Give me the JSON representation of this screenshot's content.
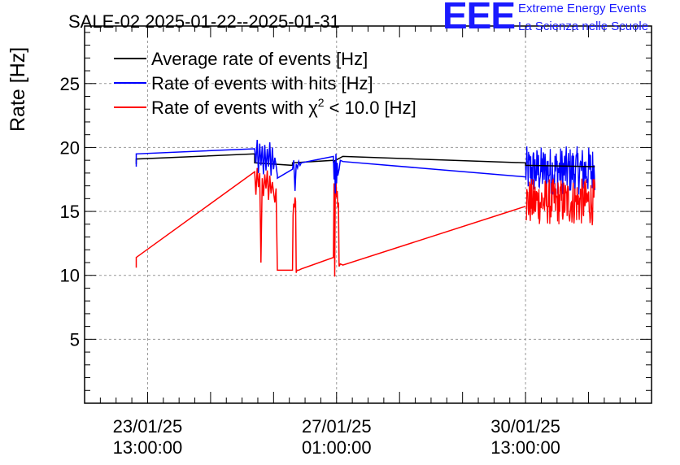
{
  "header": {
    "title": "SALE-02 2025-01-22--2025-01-31",
    "logo_text": "EEE",
    "logo_line1": "Extreme Energy Events",
    "logo_line2": "La Scienza nelle Scuole"
  },
  "chart_data": {
    "type": "line",
    "title": "SALE-02 2025-01-22--2025-01-31",
    "ylabel": "Rate [Hz]",
    "xlabel": "",
    "ylim": [
      0,
      29.5
    ],
    "xlim_days": [
      0,
      9.0
    ],
    "yticks": [
      5,
      10,
      15,
      20,
      25
    ],
    "xticks": [
      {
        "day": 1.0,
        "date": "23/01/25",
        "time": "13:00:00"
      },
      {
        "day": 4.0,
        "date": "27/01/25",
        "time": "01:00:00"
      },
      {
        "day": 7.0,
        "date": "30/01/25",
        "time": "13:00:00"
      }
    ],
    "grid": true,
    "legend_position": "top-left",
    "legend": [
      {
        "label": "Average rate of events [Hz]",
        "color": "#000000"
      },
      {
        "label": "Rate of events with hits [Hz]",
        "color": "#0000ff"
      },
      {
        "label": "Rate of events with χ² < 10.0 [Hz]",
        "label_base": "Rate of events with χ",
        "label_sup": "2",
        "label_tail": " < 10.0 [Hz]",
        "color": "#ff0000"
      }
    ],
    "series": [
      {
        "name": "Average rate of events [Hz]",
        "color": "#000000",
        "x": [
          0.82,
          0.82,
          2.7,
          2.7,
          3.3,
          3.3,
          3.95,
          3.95,
          4.1,
          7.0,
          7.0,
          8.1
        ],
        "y": [
          18.7,
          19.1,
          19.5,
          18.8,
          18.6,
          18.8,
          19.0,
          18.9,
          19.3,
          18.8,
          18.6,
          18.5
        ]
      },
      {
        "name": "Rate of events with hits [Hz]",
        "color": "#0000ff",
        "x": [
          0.82,
          0.82,
          2.7,
          2.72,
          2.74,
          2.76,
          2.78,
          2.8,
          2.82,
          2.84,
          2.86,
          2.88,
          2.9,
          2.92,
          2.94,
          2.96,
          2.98,
          3.0,
          3.02,
          3.04,
          3.06,
          3.06,
          3.3,
          3.32,
          3.34,
          3.36,
          3.38,
          3.4,
          3.42,
          3.44,
          3.95,
          3.96,
          3.97,
          3.98,
          3.99,
          4.0,
          4.01,
          4.02,
          4.04,
          4.06,
          4.1,
          7.0
        ],
        "y": [
          18.5,
          19.5,
          19.9,
          18.8,
          20.6,
          18.0,
          20.3,
          18.6,
          20.1,
          17.9,
          20.2,
          18.2,
          19.9,
          18.5,
          20.4,
          17.8,
          20.0,
          18.3,
          19.2,
          18.6,
          17.8,
          17.6,
          18.3,
          19.0,
          16.6,
          18.7,
          18.4,
          18.9,
          18.6,
          18.8,
          19.3,
          17.5,
          18.9,
          16.4,
          19.5,
          17.2,
          18.8,
          17.8,
          18.3,
          19.0,
          18.9,
          17.7
        ]
      },
      {
        "name": "Rate of events with χ² < 10.0 [Hz]",
        "color": "#ff0000",
        "x": [
          0.82,
          0.82,
          2.7,
          2.72,
          2.74,
          2.76,
          2.78,
          2.8,
          2.82,
          2.84,
          2.86,
          2.88,
          2.9,
          2.92,
          2.94,
          2.96,
          2.98,
          3.0,
          3.02,
          3.04,
          3.06,
          3.3,
          3.31,
          3.32,
          3.33,
          3.34,
          3.35,
          3.36,
          3.37,
          3.38,
          3.4,
          3.44,
          3.95,
          3.96,
          3.97,
          3.98,
          3.99,
          4.0,
          4.01,
          4.02,
          4.03,
          4.04,
          4.06,
          4.1,
          7.0
        ],
        "y": [
          10.6,
          11.4,
          18.1,
          16.3,
          18.4,
          16.9,
          18.0,
          11.0,
          17.6,
          16.2,
          17.9,
          16.8,
          18.2,
          15.9,
          17.8,
          16.4,
          17.3,
          16.5,
          15.7,
          16.8,
          10.4,
          10.4,
          14.7,
          15.6,
          15.3,
          16.1,
          15.8,
          10.2,
          10.4,
          10.4,
          10.4,
          10.5,
          11.4,
          17.2,
          9.9,
          16.8,
          17.5,
          16.1,
          16.6,
          15.3,
          15.7,
          10.7,
          10.9,
          10.8,
          15.4
        ]
      }
    ],
    "noisy_blocks": [
      {
        "series": "Rate of events with hits [Hz]",
        "color": "#0000ff",
        "x_start": 7.0,
        "x_end": 8.1,
        "y_mean": 18.3,
        "y_min": 16.3,
        "y_max": 20.1
      },
      {
        "series": "Rate of events with χ² < 10.0 [Hz]",
        "color": "#ff0000",
        "x_start": 7.0,
        "x_end": 8.1,
        "y_mean": 15.9,
        "y_min": 13.9,
        "y_max": 17.6
      }
    ]
  }
}
